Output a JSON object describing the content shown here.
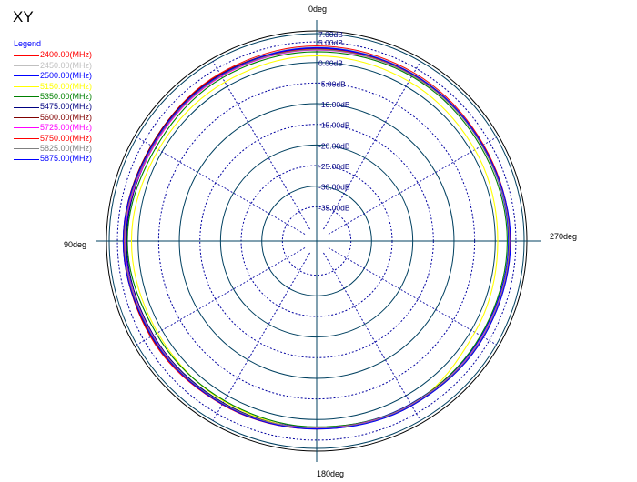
{
  "title": "XY",
  "chart_data": {
    "type": "polar-line",
    "title": "XY",
    "legend": {
      "title": "Legend",
      "placement": "top-left"
    },
    "angle_labels": {
      "top": "0deg",
      "left": "90deg",
      "bottom": "180deg",
      "right": "270deg"
    },
    "angle_direction": "counterclockwise",
    "r_range": [
      -40,
      7
    ],
    "r_ticks": [
      {
        "value": 7,
        "label": "7.00dB"
      },
      {
        "value": 5,
        "label": "5.00dB"
      },
      {
        "value": 0,
        "label": "0.00dB"
      },
      {
        "value": -5,
        "label": "-5.00dB"
      },
      {
        "value": -10,
        "label": "-10.00dB"
      },
      {
        "value": -15,
        "label": "-15.00dB"
      },
      {
        "value": -20,
        "label": "-20.00dB"
      },
      {
        "value": -25,
        "label": "-25.00dB"
      },
      {
        "value": -30,
        "label": "-30.00dB"
      },
      {
        "value": -35,
        "label": "-35.00dB"
      }
    ],
    "grid": {
      "solid_ring_values": [
        7,
        0,
        -10,
        -20,
        -30
      ],
      "dotted_ring_values": [
        5,
        -5,
        -15,
        -25,
        -35
      ],
      "spoke_step_deg": 30
    },
    "theta_deg": [
      0,
      30,
      60,
      90,
      120,
      150,
      180,
      210,
      240,
      270,
      300,
      330
    ],
    "series": [
      {
        "name": "2400.00(MHz)",
        "color": "#ff0000",
        "values": [
          4.0,
          3.6,
          3.0,
          3.4,
          3.2,
          2.5,
          2.3,
          2.6,
          3.2,
          3.6,
          3.4,
          3.8
        ]
      },
      {
        "name": "2450.00(MHz)",
        "color": "#c0c0c0",
        "values": [
          3.8,
          3.4,
          2.8,
          3.2,
          3.0,
          2.3,
          2.1,
          2.5,
          3.0,
          3.4,
          3.2,
          3.6
        ]
      },
      {
        "name": "2500.00(MHz)",
        "color": "#0000ff",
        "values": [
          3.6,
          3.2,
          2.6,
          3.0,
          2.8,
          2.1,
          1.9,
          2.3,
          2.8,
          3.2,
          3.0,
          3.4
        ]
      },
      {
        "name": "5150.00(MHz)",
        "color": "#ffff00",
        "values": [
          1.6,
          1.2,
          1.0,
          1.6,
          1.2,
          1.6,
          2.2,
          2.6,
          1.0,
          0.6,
          1.0,
          1.4
        ]
      },
      {
        "name": "5350.00(MHz)",
        "color": "#008000",
        "values": [
          2.6,
          2.4,
          1.8,
          2.6,
          1.6,
          1.4,
          1.8,
          2.4,
          2.6,
          2.9,
          2.6,
          2.8
        ]
      },
      {
        "name": "5475.00(MHz)",
        "color": "#000080",
        "values": [
          3.4,
          3.2,
          2.4,
          2.8,
          2.4,
          2.0,
          2.2,
          2.6,
          3.2,
          3.6,
          3.2,
          3.4
        ]
      },
      {
        "name": "5600.00(MHz)",
        "color": "#800000",
        "values": [
          3.3,
          3.4,
          3.0,
          3.6,
          3.0,
          2.2,
          2.1,
          2.8,
          3.4,
          3.6,
          3.0,
          3.2
        ]
      },
      {
        "name": "5725.00(MHz)",
        "color": "#ff00ff",
        "values": [
          3.0,
          2.8,
          2.4,
          3.2,
          2.6,
          2.3,
          2.0,
          2.5,
          3.1,
          3.4,
          3.0,
          3.1
        ]
      },
      {
        "name": "5750.00(MHz)",
        "color": "#ff0000",
        "values": [
          3.2,
          3.0,
          2.6,
          3.4,
          2.8,
          2.4,
          2.2,
          2.7,
          3.3,
          3.5,
          3.1,
          3.2
        ]
      },
      {
        "name": "5825.00(MHz)",
        "color": "#808080",
        "values": [
          3.1,
          3.0,
          2.6,
          3.3,
          2.7,
          2.2,
          2.1,
          2.6,
          3.2,
          3.4,
          3.0,
          3.1
        ]
      },
      {
        "name": "5875.00(MHz)",
        "color": "#0000ff",
        "values": [
          3.5,
          3.2,
          2.8,
          3.6,
          2.9,
          2.4,
          2.3,
          2.8,
          3.4,
          3.7,
          3.2,
          3.4
        ]
      }
    ]
  }
}
